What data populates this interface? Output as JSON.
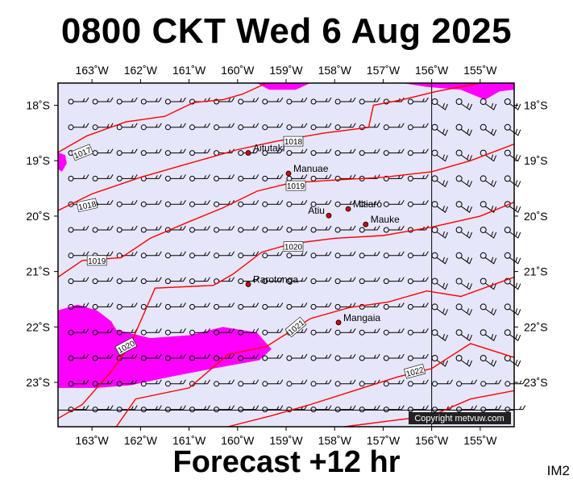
{
  "title": "0800 CKT Wed 6 Aug 2025",
  "footer": "Forecast +12 hr",
  "tag": "IM2",
  "copyright": "Copyright metvuw.com",
  "colors": {
    "ocean": "#e6e6fa",
    "precip": "#ff00ff",
    "isobar": "#ff0000",
    "town": "#dd0000",
    "frame": "#000000"
  },
  "map": {
    "lon_range": [
      -163.7,
      -154.3
    ],
    "lat_range": [
      -23.8,
      -17.6
    ],
    "lon_ticks": [
      {
        "value": -163,
        "label": "163˚W"
      },
      {
        "value": -162,
        "label": "162˚W"
      },
      {
        "value": -161,
        "label": "161˚W"
      },
      {
        "value": -160,
        "label": "160˚W"
      },
      {
        "value": -159,
        "label": "159˚W"
      },
      {
        "value": -158,
        "label": "158˚W"
      },
      {
        "value": -157,
        "label": "157˚W"
      },
      {
        "value": -156,
        "label": "156˚W"
      },
      {
        "value": -155,
        "label": "155˚W"
      }
    ],
    "lat_ticks": [
      {
        "value": -18,
        "label": "18˚S"
      },
      {
        "value": -19,
        "label": "19˚S"
      },
      {
        "value": -20,
        "label": "20˚S"
      },
      {
        "value": -21,
        "label": "21˚S"
      },
      {
        "value": -22,
        "label": "22˚S"
      },
      {
        "value": -23,
        "label": "23˚S"
      }
    ],
    "places": [
      {
        "name": "Aitutaki",
        "lon": -159.78,
        "lat": -18.86
      },
      {
        "name": "Manuae",
        "lon": -158.95,
        "lat": -19.23
      },
      {
        "name": "Mitiaro",
        "lon": -157.72,
        "lat": -19.87
      },
      {
        "name": "Atiu",
        "lon": -158.12,
        "lat": -19.99
      },
      {
        "name": "Mauke",
        "lon": -157.36,
        "lat": -20.15
      },
      {
        "name": "Rarotonga",
        "lon": -159.78,
        "lat": -21.23
      },
      {
        "name": "Mangaia",
        "lon": -157.92,
        "lat": -21.92
      }
    ],
    "isobars": [
      {
        "hpa": "1017",
        "points": [
          [
            -163.7,
            -18.85
          ],
          [
            -163.1,
            -18.55
          ],
          [
            -162.3,
            -18.3
          ],
          [
            -161.5,
            -18.2
          ],
          [
            -160.9,
            -17.95
          ],
          [
            -160.3,
            -17.9
          ],
          [
            -159.9,
            -17.8
          ],
          [
            -159.4,
            -17.6
          ]
        ]
      },
      {
        "hpa": "1018",
        "points": [
          [
            -163.7,
            -19.9
          ],
          [
            -163.0,
            -19.6
          ],
          [
            -162.0,
            -19.3
          ],
          [
            -161.0,
            -19.05
          ],
          [
            -160.0,
            -18.8
          ],
          [
            -159.2,
            -18.65
          ],
          [
            -158.2,
            -18.5
          ],
          [
            -157.3,
            -18.4
          ],
          [
            -157.2,
            -18.0
          ],
          [
            -156.6,
            -17.9
          ],
          [
            -155.9,
            -17.75
          ],
          [
            -155.0,
            -17.6
          ]
        ]
      },
      {
        "hpa": "1019",
        "points": [
          [
            -163.7,
            -21.1
          ],
          [
            -163.2,
            -20.8
          ],
          [
            -162.4,
            -20.75
          ],
          [
            -161.8,
            -20.4
          ],
          [
            -161.0,
            -20.1
          ],
          [
            -160.3,
            -19.85
          ],
          [
            -159.6,
            -19.55
          ],
          [
            -158.9,
            -19.4
          ],
          [
            -158.0,
            -19.35
          ],
          [
            -157.0,
            -19.3
          ],
          [
            -156.0,
            -19.2
          ],
          [
            -155.2,
            -19.0
          ],
          [
            -154.3,
            -18.7
          ]
        ]
      },
      {
        "hpa": "1020",
        "points": [
          [
            -163.7,
            -23.65
          ],
          [
            -163.2,
            -23.4
          ],
          [
            -162.6,
            -22.8
          ],
          [
            -162.2,
            -22.3
          ],
          [
            -161.7,
            -21.3
          ],
          [
            -160.5,
            -21.25
          ],
          [
            -160.1,
            -21.05
          ],
          [
            -159.5,
            -20.65
          ],
          [
            -158.9,
            -20.5
          ],
          [
            -158.0,
            -20.4
          ],
          [
            -157.0,
            -20.35
          ],
          [
            -156.0,
            -20.2
          ],
          [
            -155.0,
            -20.0
          ],
          [
            -154.3,
            -19.75
          ]
        ]
      },
      {
        "hpa": "1021",
        "points": [
          [
            -162.5,
            -23.8
          ],
          [
            -162.1,
            -23.3
          ],
          [
            -161.0,
            -23.1
          ],
          [
            -160.2,
            -22.5
          ],
          [
            -159.4,
            -22.35
          ],
          [
            -158.5,
            -21.85
          ],
          [
            -157.7,
            -21.65
          ],
          [
            -156.9,
            -21.55
          ],
          [
            -156.1,
            -21.35
          ],
          [
            -155.4,
            -21.45
          ],
          [
            -154.3,
            -21.1
          ]
        ]
      },
      {
        "hpa": "1022",
        "points": [
          [
            -160.2,
            -23.8
          ],
          [
            -159.3,
            -23.6
          ],
          [
            -158.5,
            -23.4
          ],
          [
            -157.6,
            -23.15
          ],
          [
            -156.7,
            -22.9
          ],
          [
            -156.0,
            -22.75
          ],
          [
            -155.2,
            -22.3
          ],
          [
            -154.3,
            -22.55
          ]
        ]
      },
      {
        "hpa": "",
        "points": [
          [
            -157.8,
            -23.8
          ],
          [
            -156.9,
            -23.7
          ],
          [
            -156.0,
            -23.6
          ],
          [
            -155.2,
            -23.3
          ],
          [
            -154.3,
            -23.15
          ]
        ]
      }
    ],
    "isobar_labels": [
      {
        "text": "1017",
        "lon": -163.2,
        "lat": -18.85,
        "angle": -22
      },
      {
        "text": "1018",
        "lon": -158.85,
        "lat": -18.65,
        "angle": 0
      },
      {
        "text": "1018",
        "lon": -163.1,
        "lat": -19.8,
        "angle": -12
      },
      {
        "text": "1019",
        "lon": -158.8,
        "lat": -19.45,
        "angle": 0
      },
      {
        "text": "1019",
        "lon": -162.9,
        "lat": -20.8,
        "angle": 0
      },
      {
        "text": "1020",
        "lon": -158.85,
        "lat": -20.55,
        "angle": 0
      },
      {
        "text": "1020",
        "lon": -162.3,
        "lat": -22.35,
        "angle": -28
      },
      {
        "text": "1021",
        "lon": -158.8,
        "lat": -22.0,
        "angle": -40
      },
      {
        "text": "1022",
        "lon": -156.35,
        "lat": -22.8,
        "angle": -15
      }
    ],
    "precip_areas": [
      {
        "points": [
          [
            -163.7,
            -21.7
          ],
          [
            -163.3,
            -21.6
          ],
          [
            -162.9,
            -21.7
          ],
          [
            -162.6,
            -21.9
          ],
          [
            -162.5,
            -22.05
          ],
          [
            -161.8,
            -22.2
          ],
          [
            -161.0,
            -22.15
          ],
          [
            -160.3,
            -22.0
          ],
          [
            -159.6,
            -22.1
          ],
          [
            -159.3,
            -22.4
          ],
          [
            -159.55,
            -22.6
          ],
          [
            -160.5,
            -22.75
          ],
          [
            -161.4,
            -22.9
          ],
          [
            -162.2,
            -23.05
          ],
          [
            -162.9,
            -23.1
          ],
          [
            -163.7,
            -23.1
          ]
        ]
      },
      {
        "points": [
          [
            -163.7,
            -18.85
          ],
          [
            -163.55,
            -18.9
          ],
          [
            -163.52,
            -19.05
          ],
          [
            -163.62,
            -19.2
          ],
          [
            -163.7,
            -19.15
          ]
        ]
      },
      {
        "points": [
          [
            -159.6,
            -17.6
          ],
          [
            -159.35,
            -17.72
          ],
          [
            -158.8,
            -17.72
          ],
          [
            -158.5,
            -17.6
          ]
        ]
      },
      {
        "points": [
          [
            -156.6,
            -17.6
          ],
          [
            -156.1,
            -17.67
          ],
          [
            -155.4,
            -17.72
          ],
          [
            -154.9,
            -17.9
          ],
          [
            -154.6,
            -17.75
          ],
          [
            -154.3,
            -17.72
          ],
          [
            -154.3,
            -17.6
          ]
        ]
      }
    ]
  }
}
